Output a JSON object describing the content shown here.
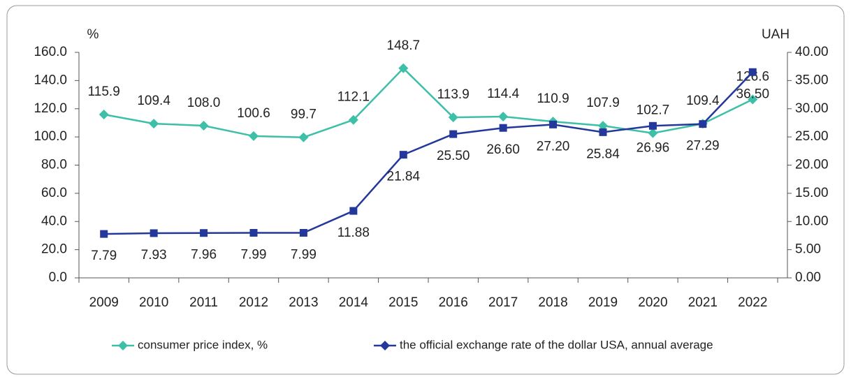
{
  "chart_data": {
    "type": "line",
    "y_label": "%",
    "y2_label": "UAH",
    "categories": [
      "2009",
      "2010",
      "2011",
      "2012",
      "2013",
      "2014",
      "2015",
      "2016",
      "2017",
      "2018",
      "2019",
      "2020",
      "2021",
      "2022"
    ],
    "series": [
      {
        "name": "consumer price index, %",
        "color": "#3dbfa8",
        "marker": "diamond",
        "values": [
          115.9,
          109.4,
          108.0,
          100.6,
          99.7,
          112.1,
          148.7,
          113.9,
          114.4,
          110.9,
          107.9,
          102.7,
          109.4,
          126.6
        ],
        "value_labels": [
          "115.9",
          "109.4",
          "108.0",
          "100.6",
          "99.7",
          "112.1",
          "148.7",
          "113.9",
          "114.4",
          "110.9",
          "107.9",
          "102.7",
          "109.4",
          "126.6"
        ]
      },
      {
        "name": "the official exchange rate of the dollar USA, annual average",
        "color": "#23389a",
        "marker": "square",
        "axis": "y2",
        "values": [
          7.79,
          7.93,
          7.96,
          7.99,
          7.99,
          11.88,
          21.84,
          25.5,
          26.6,
          27.2,
          25.84,
          26.96,
          27.29,
          36.5
        ],
        "value_labels": [
          "7.79",
          "7.93",
          "7.96",
          "7.99",
          "7.99",
          "11.88",
          "21.84",
          "25.50",
          "26.60",
          "27.20",
          "25.84",
          "26.96",
          "27.29",
          "36.50"
        ]
      }
    ],
    "ylim": [
      0,
      160
    ],
    "yticks": [
      {
        "value": 0,
        "label": "0.0"
      },
      {
        "value": 20,
        "label": "20.0"
      },
      {
        "value": 40,
        "label": "40.0"
      },
      {
        "value": 60,
        "label": "60.0"
      },
      {
        "value": 80,
        "label": "80.0"
      },
      {
        "value": 100,
        "label": "100.0"
      },
      {
        "value": 120,
        "label": "120.0"
      },
      {
        "value": 140,
        "label": "140.0"
      },
      {
        "value": 160,
        "label": "160.0"
      }
    ],
    "y2lim": [
      0,
      40
    ],
    "y2ticks": [
      {
        "value": 0,
        "label": "0.00"
      },
      {
        "value": 5,
        "label": "5.00"
      },
      {
        "value": 10,
        "label": "10.00"
      },
      {
        "value": 15,
        "label": "15.00"
      },
      {
        "value": 20,
        "label": "20.00"
      },
      {
        "value": 25,
        "label": "25.00"
      },
      {
        "value": 30,
        "label": "30.00"
      },
      {
        "value": 35,
        "label": "35.00"
      },
      {
        "value": 40,
        "label": "40.00"
      }
    ],
    "grid": false,
    "legend": "bottom"
  }
}
